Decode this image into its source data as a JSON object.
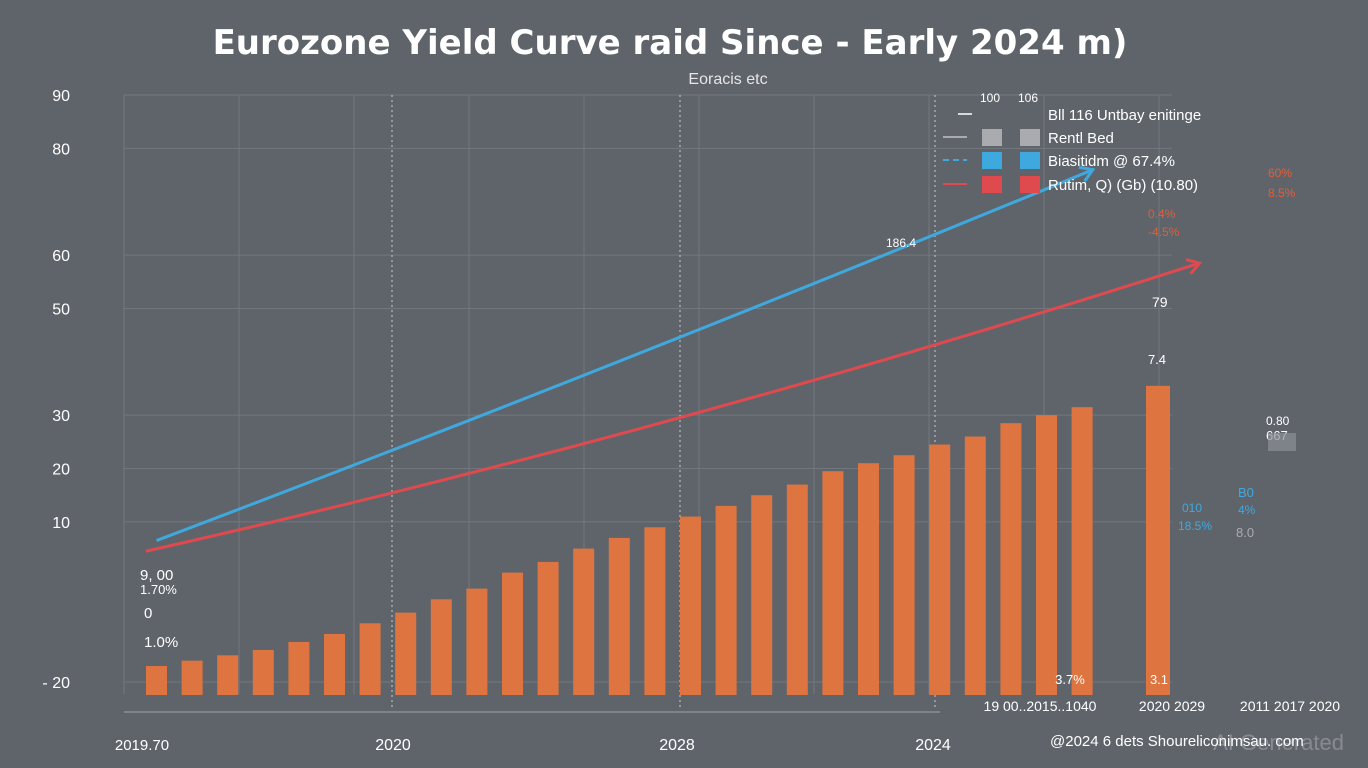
{
  "chart_data": {
    "type": "bar",
    "title": "Eurozone Yield Curve raid Since - Early 2024 m)",
    "subtitle": "Eoracis etc",
    "ylabel": "",
    "xlabel": "",
    "ylim": [
      -20,
      90
    ],
    "y_ticks": [
      {
        "value": 90,
        "label": "90"
      },
      {
        "value": 80,
        "label": "80"
      },
      {
        "value": 60,
        "label": "60"
      },
      {
        "value": 50,
        "label": "50"
      },
      {
        "value": 30,
        "label": "30"
      },
      {
        "value": 20,
        "label": "20"
      },
      {
        "value": 10,
        "label": "10"
      },
      {
        "value": -20,
        "label": "- 20"
      }
    ],
    "x_ticks": [
      "2020",
      "2028",
      "2024"
    ],
    "x_start_label": "2019.70",
    "x_end_labels": [
      "19 00..2015..1040",
      "2020 2029",
      "2011 2017 2020"
    ],
    "bars": [
      {
        "value": -17.0
      },
      {
        "value": -16.0
      },
      {
        "value": -15.0
      },
      {
        "value": -14.0
      },
      {
        "value": -12.5
      },
      {
        "value": -11.0
      },
      {
        "value": -9.0
      },
      {
        "value": -7.0
      },
      {
        "value": -4.5
      },
      {
        "value": -2.5
      },
      {
        "value": 0.5
      },
      {
        "value": 2.5
      },
      {
        "value": 5.0
      },
      {
        "value": 7.0
      },
      {
        "value": 9.0
      },
      {
        "value": 11.0
      },
      {
        "value": 13.0
      },
      {
        "value": 15.0
      },
      {
        "value": 17.0
      },
      {
        "value": 19.5
      },
      {
        "value": 21.0
      },
      {
        "value": 22.5
      },
      {
        "value": 24.5
      },
      {
        "value": 26.0
      },
      {
        "value": 28.5
      },
      {
        "value": 30.0
      },
      {
        "value": 31.5
      },
      {
        "value": 35.5
      }
    ],
    "bar_labels": [
      {
        "text": "3.7%",
        "bar_index": 25
      },
      {
        "text": "3.1",
        "bar_index": 27
      },
      {
        "text": "7.4",
        "bar_index": 27,
        "position": "top"
      }
    ],
    "series": [
      {
        "name": "Blue line",
        "color": "#3fa9df",
        "start": [
          0,
          6.5
        ],
        "end": [
          26.3,
          76.0
        ]
      },
      {
        "name": "Red line",
        "color": "#df4a4f",
        "start": [
          -0.3,
          4.5
        ],
        "end": [
          29.3,
          58.5
        ]
      }
    ],
    "legend": {
      "placement": "top-right",
      "header": [
        "100",
        "106"
      ],
      "entries": [
        {
          "text": "Bll 116 Untbay enitinge",
          "style": "line-white"
        },
        {
          "text": "Rentl Bed",
          "color": "#a9abae"
        },
        {
          "text": "Biasitidm @ 67.4%",
          "color": "#3fa9df"
        },
        {
          "text": "Rutim, Q) (Gb) (10.80)",
          "color": "#df4a4f"
        }
      ]
    },
    "annotations": [
      {
        "text": "9, 00",
        "color": "#ffffff"
      },
      {
        "text": "1.70%",
        "color": "#ffffff"
      },
      {
        "text": "0",
        "color": "#ffffff"
      },
      {
        "text": "1.0%",
        "color": "#ffffff"
      },
      {
        "text": "186.4",
        "color": "#ffffff"
      },
      {
        "text": "79",
        "color": "#ffffff"
      },
      {
        "text": "60%",
        "color": "#df5f3a"
      },
      {
        "text": "8.5%",
        "color": "#df5f3a"
      },
      {
        "text": "0.4%",
        "color": "#df5f3a"
      },
      {
        "text": "-4.5%",
        "color": "#df5f3a"
      },
      {
        "text": "0.80",
        "color": "#ffffff"
      },
      {
        "text": "667",
        "color": "#ffffff"
      },
      {
        "text": "010",
        "color": "#3fa9df"
      },
      {
        "text": "18.5%",
        "color": "#3fa9df"
      },
      {
        "text": "B0",
        "color": "#3fa9df"
      },
      {
        "text": "4%",
        "color": "#3fa9df"
      },
      {
        "text": "8.0",
        "color": "#a9abae"
      }
    ],
    "grid": true
  },
  "footer": {
    "source": "@2024 6 dets Shoureliconimsau. com",
    "watermark": "AI Generated"
  },
  "colors": {
    "background": "#5f646b",
    "bar": "#de7440",
    "blue": "#3fa9df",
    "red": "#df4a4f",
    "grid": "#72777e"
  }
}
